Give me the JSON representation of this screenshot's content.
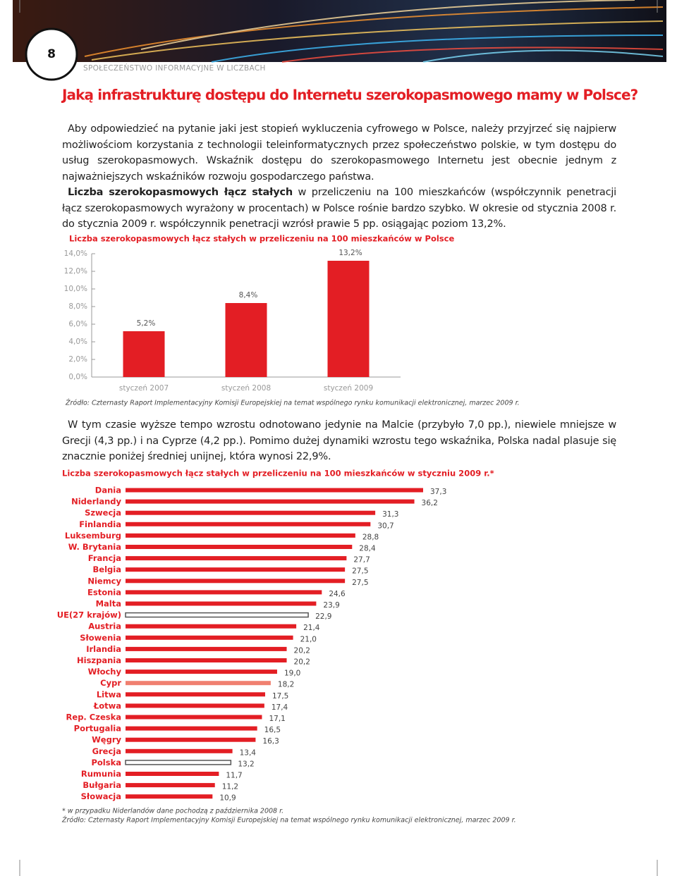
{
  "header": {
    "page_number": "8",
    "section": "SPOŁECZEŃSTWO INFORMACYJNE W LICZBACH"
  },
  "heading": "Jaką infrastrukturę dostępu do Internetu szerokopasmowego mamy w Polsce?",
  "paragraphs": [
    {
      "text": "Aby odpowiedzieć na pytanie jaki jest stopień wykluczenia cyfrowego w Polsce, należy przyjrzeć się najpierw możliwościom korzystania z technologii teleinformatycznych przez społeczeństwo polskie, w tym dostępu do usług szerokopasmowych. Wskaźnik dostępu do szerokopasmowego Internetu jest obecnie jednym z najważniejszych wskaźników rozwoju gospodarczego państwa."
    },
    {
      "bold": "Liczba szerokopasmowych łącz stałych",
      "text": " w przeliczeniu na 100 mieszkańców (współczynnik penetracji łącz szerokopasmowych wyrażony w procentach) w Polsce rośnie bardzo szybko. W okresie od stycznia 2008 r. do stycznia 2009 r. współczynnik penetracji wzrósł prawie 5 pp. osiągając poziom 13,2%."
    },
    {
      "text": "W tym czasie wyższe tempo wzrostu odnotowano jedynie na Malcie (przybyło 7,0 pp.), niewiele mniejsze w Grecji (4,3 pp.) i na Cyprze (4,2 pp.). Pomimo dużej dynamiki wzrostu tego wskaźnika, Polska nadal plasuje się znacznie poniżej średniej unijnej, która wynosi 22,9%."
    }
  ],
  "chart_data": [
    {
      "type": "bar",
      "title": "Liczba szerokopasmowych łącz stałych w przeliczeniu na 100 mieszkańców w Polsce",
      "categories": [
        "styczeń 2007",
        "styczeń 2008",
        "styczeń 2009"
      ],
      "values": [
        5.2,
        8.4,
        13.2
      ],
      "value_labels": [
        "5,2%",
        "8,4%",
        "13,2%"
      ],
      "color": "#e31e24",
      "ylim": [
        0,
        14
      ],
      "yticks": [
        {
          "value": 0,
          "label": "0,0%"
        },
        {
          "value": 2,
          "label": "2,0%"
        },
        {
          "value": 4,
          "label": "4,0%"
        },
        {
          "value": 6,
          "label": "6,0%"
        },
        {
          "value": 8,
          "label": "8,0%"
        },
        {
          "value": 10,
          "label": "10,0%"
        },
        {
          "value": 12,
          "label": "12,0%"
        },
        {
          "value": 14,
          "label": "14,0%"
        }
      ],
      "source": "Źródło: Czternasty Raport Implementacyjny Komisji Europejskiej na temat wspólnego rynku komunikacji elektronicznej, marzec 2009 r."
    },
    {
      "type": "hbar",
      "title": "Liczba szerokopasmowych łącz stałych w przeliczeniu na 100 mieszkańców w styczniu 2009 r.*",
      "categories": [
        "Dania",
        "Niderlandy",
        "Szwecja",
        "Finlandia",
        "Luksemburg",
        "W. Brytania",
        "Francja",
        "Belgia",
        "Niemcy",
        "Estonia",
        "Malta",
        "UE(27 krajów)",
        "Austria",
        "Słowenia",
        "Irlandia",
        "Hiszpania",
        "Włochy",
        "Cypr",
        "Litwa",
        "Łotwa",
        "Rep. Czeska",
        "Portugalia",
        "Węgry",
        "Grecja",
        "Polska",
        "Rumunia",
        "Bułgaria",
        "Słowacja"
      ],
      "values": [
        37.3,
        36.2,
        31.3,
        30.7,
        28.8,
        28.4,
        27.7,
        27.5,
        27.5,
        24.6,
        23.9,
        22.9,
        21.4,
        21.0,
        20.2,
        20.2,
        19.0,
        18.2,
        17.5,
        17.4,
        17.1,
        16.5,
        16.3,
        13.4,
        13.2,
        11.7,
        11.2,
        10.9
      ],
      "value_labels": [
        "37,3",
        "36,2",
        "31,3",
        "30,7",
        "28,8",
        "28,4",
        "27,7",
        "27,5",
        "27,5",
        "24,6",
        "23,9",
        "22,9",
        "21,4",
        "21,0",
        "20,2",
        "20,2",
        "19,0",
        "18,2",
        "17,5",
        "17,4",
        "17,1",
        "16,5",
        "16,3",
        "13,4",
        "13,2",
        "11,7",
        "11,2",
        "10,9"
      ],
      "colors": [
        "#e31e24",
        "#e31e24",
        "#e31e24",
        "#e31e24",
        "#e31e24",
        "#e31e24",
        "#e31e24",
        "#e31e24",
        "#e31e24",
        "#e31e24",
        "#e31e24",
        "#ffffff",
        "#e31e24",
        "#e31e24",
        "#e31e24",
        "#e31e24",
        "#e31e24",
        "#f08070",
        "#e31e24",
        "#e31e24",
        "#e31e24",
        "#e31e24",
        "#e31e24",
        "#e31e24",
        "#ffffff",
        "#e31e24",
        "#e31e24",
        "#e31e24"
      ],
      "footnotes": [
        "* w przypadku Niderlandów dane pochodzą z października 2008 r.",
        "Źródło: Czternasty Raport Implementacyjny Komisji Europejskiej na temat wspólnego rynku komunikacji elektronicznej, marzec 2009 r."
      ]
    }
  ]
}
